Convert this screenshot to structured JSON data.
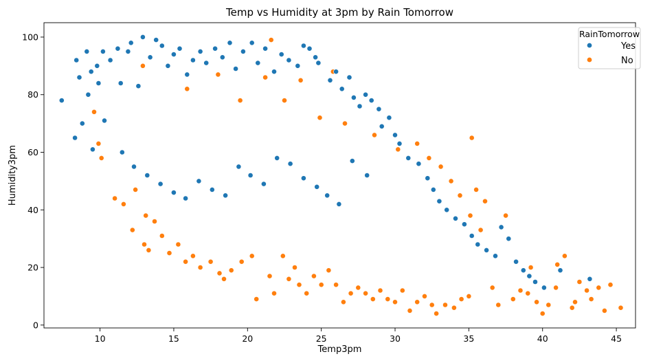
{
  "chart_data": {
    "type": "scatter",
    "title": "Temp vs Humidity at 3pm by Rain Tomorrow",
    "xlabel": "Temp3pm",
    "ylabel": "Humidity3pm",
    "xlim": [
      6.2,
      46.3
    ],
    "ylim": [
      -1,
      105
    ],
    "x_ticks": [
      10,
      15,
      20,
      25,
      30,
      35,
      40,
      45
    ],
    "y_ticks": [
      0,
      20,
      40,
      60,
      80,
      100
    ],
    "grid": false,
    "legend": {
      "title": "RainTomorrow",
      "placement": "top-right",
      "entries": [
        {
          "label": "Yes",
          "color": "#1f77b4"
        },
        {
          "label": "No",
          "color": "#ff7f0e"
        }
      ]
    },
    "series": [
      {
        "name": "No",
        "color": "#ff7f0e",
        "points": [
          [
            9.6,
            74
          ],
          [
            9.9,
            63
          ],
          [
            10.1,
            58
          ],
          [
            11.0,
            44
          ],
          [
            11.6,
            42
          ],
          [
            12.2,
            33
          ],
          [
            12.4,
            47
          ],
          [
            13.1,
            38
          ],
          [
            13.0,
            28
          ],
          [
            13.3,
            26
          ],
          [
            13.7,
            36
          ],
          [
            14.2,
            31
          ],
          [
            14.7,
            25
          ],
          [
            15.3,
            28
          ],
          [
            15.8,
            22
          ],
          [
            16.3,
            24
          ],
          [
            16.8,
            20
          ],
          [
            17.5,
            22
          ],
          [
            18.1,
            18
          ],
          [
            18.4,
            16
          ],
          [
            18.9,
            19
          ],
          [
            19.6,
            22
          ],
          [
            20.3,
            24
          ],
          [
            20.6,
            9
          ],
          [
            21.5,
            17
          ],
          [
            21.8,
            11
          ],
          [
            22.4,
            24
          ],
          [
            22.8,
            16
          ],
          [
            23.2,
            20
          ],
          [
            23.5,
            14
          ],
          [
            24.0,
            11
          ],
          [
            24.5,
            17
          ],
          [
            25.0,
            14
          ],
          [
            25.5,
            19
          ],
          [
            26.0,
            14
          ],
          [
            26.5,
            8
          ],
          [
            27.0,
            11
          ],
          [
            27.5,
            13
          ],
          [
            28.0,
            11
          ],
          [
            28.5,
            9
          ],
          [
            29.0,
            12
          ],
          [
            29.5,
            9
          ],
          [
            30.0,
            8
          ],
          [
            30.5,
            12
          ],
          [
            31.0,
            5
          ],
          [
            31.5,
            8
          ],
          [
            32.0,
            10
          ],
          [
            32.5,
            7
          ],
          [
            32.8,
            4
          ],
          [
            33.4,
            7
          ],
          [
            34.0,
            6
          ],
          [
            34.5,
            9
          ],
          [
            35.0,
            10
          ],
          [
            35.2,
            65
          ],
          [
            35.5,
            47
          ],
          [
            36.1,
            43
          ],
          [
            36.6,
            13
          ],
          [
            37.0,
            7
          ],
          [
            37.5,
            38
          ],
          [
            38.0,
            9
          ],
          [
            38.5,
            12
          ],
          [
            39.0,
            11
          ],
          [
            39.2,
            20
          ],
          [
            39.6,
            8
          ],
          [
            40.0,
            4
          ],
          [
            40.4,
            7
          ],
          [
            40.9,
            13
          ],
          [
            41.0,
            21
          ],
          [
            41.5,
            24
          ],
          [
            42.0,
            6
          ],
          [
            42.2,
            8
          ],
          [
            42.5,
            15
          ],
          [
            43.0,
            12
          ],
          [
            43.3,
            9
          ],
          [
            43.8,
            13
          ],
          [
            44.2,
            5
          ],
          [
            44.6,
            14
          ],
          [
            45.3,
            6
          ],
          [
            21.6,
            99
          ],
          [
            18.0,
            87
          ],
          [
            21.2,
            86
          ],
          [
            25.8,
            88
          ],
          [
            23.6,
            85
          ],
          [
            12.9,
            90
          ],
          [
            15.9,
            82
          ],
          [
            19.5,
            78
          ],
          [
            22.5,
            78
          ],
          [
            24.9,
            72
          ],
          [
            26.6,
            70
          ],
          [
            28.6,
            66
          ],
          [
            30.2,
            61
          ],
          [
            31.5,
            63
          ],
          [
            32.3,
            58
          ],
          [
            33.1,
            55
          ],
          [
            33.8,
            50
          ],
          [
            34.4,
            45
          ],
          [
            35.1,
            38
          ],
          [
            35.8,
            33
          ]
        ]
      },
      {
        "name": "Yes",
        "color": "#1f77b4",
        "points": [
          [
            7.4,
            78
          ],
          [
            8.3,
            65
          ],
          [
            8.4,
            92
          ],
          [
            8.6,
            86
          ],
          [
            8.8,
            70
          ],
          [
            9.1,
            95
          ],
          [
            9.2,
            80
          ],
          [
            9.4,
            88
          ],
          [
            9.5,
            61
          ],
          [
            9.8,
            90
          ],
          [
            9.9,
            84
          ],
          [
            10.2,
            95
          ],
          [
            10.3,
            71
          ],
          [
            10.7,
            92
          ],
          [
            11.2,
            96
          ],
          [
            11.4,
            84
          ],
          [
            11.9,
            95
          ],
          [
            12.1,
            98
          ],
          [
            12.6,
            83
          ],
          [
            12.9,
            100
          ],
          [
            13.4,
            93
          ],
          [
            13.8,
            99
          ],
          [
            14.2,
            97
          ],
          [
            14.6,
            90
          ],
          [
            15.0,
            94
          ],
          [
            15.4,
            96
          ],
          [
            15.9,
            87
          ],
          [
            16.3,
            92
          ],
          [
            16.8,
            95
          ],
          [
            17.2,
            91
          ],
          [
            17.8,
            96
          ],
          [
            18.3,
            93
          ],
          [
            18.8,
            98
          ],
          [
            19.2,
            89
          ],
          [
            19.7,
            95
          ],
          [
            20.3,
            98
          ],
          [
            20.7,
            91
          ],
          [
            21.2,
            96
          ],
          [
            21.8,
            88
          ],
          [
            22.3,
            94
          ],
          [
            22.8,
            92
          ],
          [
            23.4,
            90
          ],
          [
            23.8,
            97
          ],
          [
            24.2,
            96
          ],
          [
            24.6,
            93
          ],
          [
            24.8,
            91
          ],
          [
            25.6,
            85
          ],
          [
            26.0,
            88
          ],
          [
            26.4,
            82
          ],
          [
            26.9,
            86
          ],
          [
            27.2,
            79
          ],
          [
            27.6,
            76
          ],
          [
            28.0,
            80
          ],
          [
            28.4,
            78
          ],
          [
            28.9,
            75
          ],
          [
            29.1,
            69
          ],
          [
            29.6,
            72
          ],
          [
            30.0,
            66
          ],
          [
            30.3,
            63
          ],
          [
            30.9,
            58
          ],
          [
            31.6,
            56
          ],
          [
            32.2,
            51
          ],
          [
            32.6,
            47
          ],
          [
            33.0,
            43
          ],
          [
            33.5,
            40
          ],
          [
            34.1,
            37
          ],
          [
            34.7,
            35
          ],
          [
            35.2,
            31
          ],
          [
            35.6,
            28
          ],
          [
            36.2,
            26
          ],
          [
            36.8,
            24
          ],
          [
            37.2,
            34
          ],
          [
            37.7,
            30
          ],
          [
            38.2,
            22
          ],
          [
            38.7,
            19
          ],
          [
            39.1,
            17
          ],
          [
            39.5,
            15
          ],
          [
            40.1,
            13
          ],
          [
            41.2,
            19
          ],
          [
            43.2,
            16
          ],
          [
            11.5,
            60
          ],
          [
            12.3,
            55
          ],
          [
            13.2,
            52
          ],
          [
            14.1,
            49
          ],
          [
            15.0,
            46
          ],
          [
            15.8,
            44
          ],
          [
            16.7,
            50
          ],
          [
            17.6,
            47
          ],
          [
            18.5,
            45
          ],
          [
            19.4,
            55
          ],
          [
            20.2,
            52
          ],
          [
            21.1,
            49
          ],
          [
            22.0,
            58
          ],
          [
            22.9,
            56
          ],
          [
            23.8,
            51
          ],
          [
            24.7,
            48
          ],
          [
            25.4,
            45
          ],
          [
            26.2,
            42
          ],
          [
            27.1,
            57
          ],
          [
            28.1,
            52
          ]
        ]
      }
    ]
  }
}
